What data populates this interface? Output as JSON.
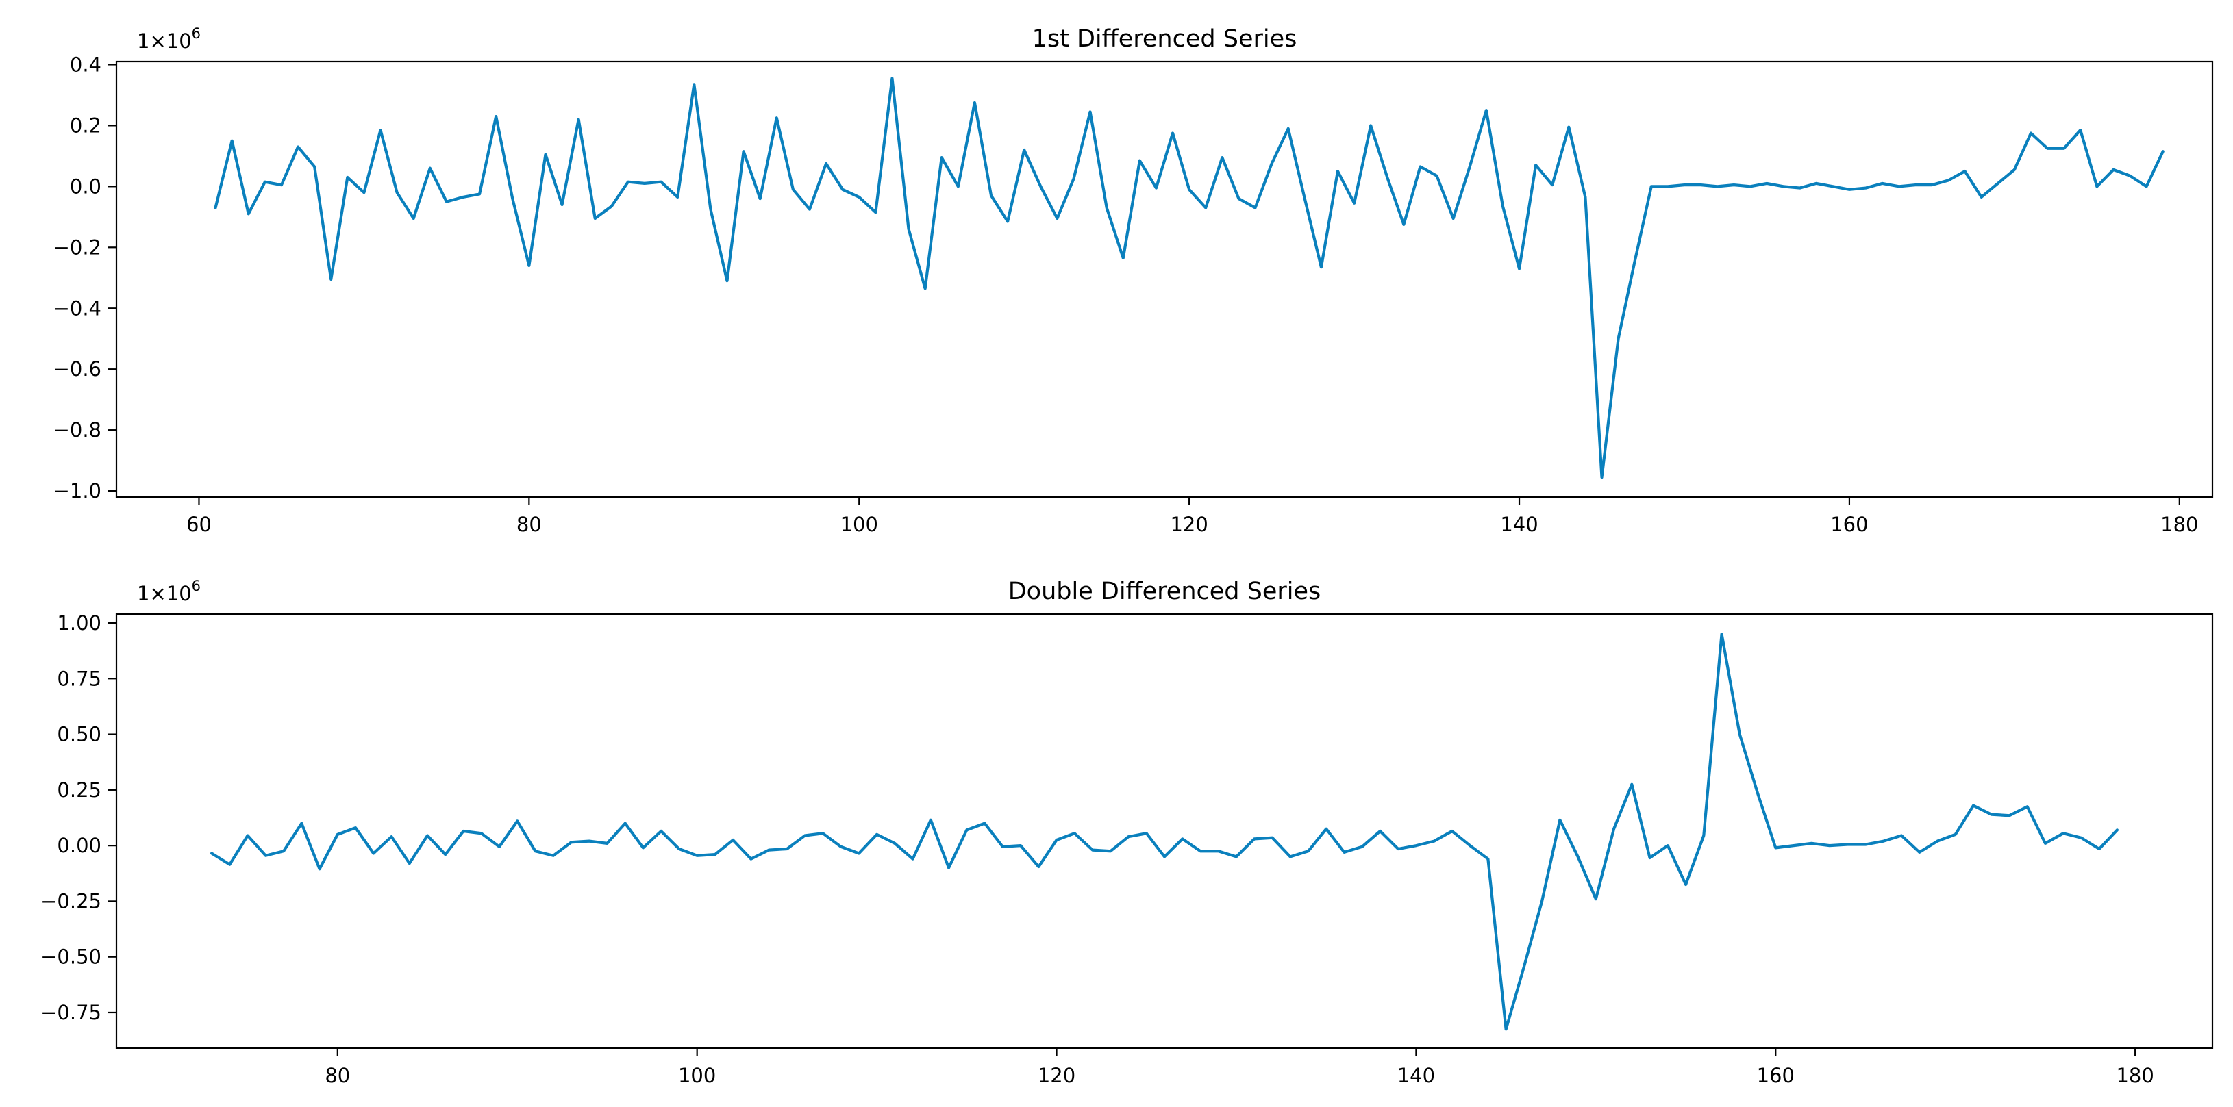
{
  "chart_data": [
    {
      "type": "line",
      "title": "1st Differenced Series",
      "xlabel": "",
      "ylabel": "",
      "y_multiplier": "1×10",
      "y_multiplier_exp": "6",
      "xlim": [
        55,
        182
      ],
      "ylim": [
        -1.02,
        0.41
      ],
      "xticks": [
        60,
        80,
        100,
        120,
        140,
        160,
        180
      ],
      "yticks": [
        0.4,
        0.2,
        0.0,
        -0.2,
        -0.4,
        -0.6,
        -0.8,
        -1.0
      ],
      "ytick_labels": [
        "0.4",
        "0.2",
        "0.0",
        "−0.2",
        "−0.4",
        "−0.6",
        "−0.8",
        "−1.0"
      ],
      "color": "#0a80bd",
      "grid": false,
      "series": [
        {
          "x_start": 61,
          "values": [
            -0.07,
            0.15,
            -0.09,
            0.015,
            0.005,
            0.13,
            0.065,
            -0.305,
            0.03,
            -0.02,
            0.185,
            -0.02,
            -0.105,
            0.06,
            -0.05,
            -0.035,
            -0.025,
            0.23,
            -0.04,
            -0.26,
            0.105,
            -0.06,
            0.22,
            -0.105,
            -0.065,
            0.015,
            0.01,
            0.015,
            -0.035,
            0.335,
            -0.075,
            -0.31,
            0.115,
            -0.04,
            0.225,
            -0.01,
            -0.075,
            0.075,
            -0.01,
            -0.035,
            -0.085,
            0.355,
            -0.14,
            -0.335,
            0.095,
            0.0,
            0.275,
            -0.03,
            -0.115,
            0.12,
            0.0,
            -0.105,
            0.025,
            0.245,
            -0.07,
            -0.235,
            0.085,
            -0.005,
            0.175,
            -0.01,
            -0.07,
            0.095,
            -0.04,
            -0.07,
            0.075,
            0.19,
            -0.04,
            -0.265,
            0.05,
            -0.055,
            0.2,
            0.03,
            -0.125,
            0.065,
            0.035,
            -0.105,
            0.065,
            0.25,
            -0.065,
            -0.27,
            0.07,
            0.005,
            0.195,
            -0.035,
            -0.955,
            -0.5,
            -0.245,
            0.0,
            0.0,
            0.005,
            0.005,
            0.0,
            0.005,
            0.0,
            0.01,
            0.0,
            -0.005,
            0.01,
            0.0,
            -0.01,
            -0.005,
            0.01,
            0.0,
            0.005,
            0.005,
            0.02,
            0.05,
            -0.035,
            0.01,
            0.055,
            0.175,
            0.125,
            0.125,
            0.185,
            0.0,
            0.055,
            0.035,
            0.0,
            0.115
          ]
        }
      ]
    },
    {
      "type": "line",
      "title": "Double Differenced Series",
      "xlabel": "",
      "ylabel": "",
      "y_multiplier": "1×10",
      "y_multiplier_exp": "6",
      "xlim": [
        67.7,
        184.3
      ],
      "ylim": [
        -0.91,
        1.04
      ],
      "xticks": [
        80,
        100,
        120,
        140,
        160,
        180
      ],
      "yticks": [
        1.0,
        0.75,
        0.5,
        0.25,
        0.0,
        -0.25,
        -0.5,
        -0.75
      ],
      "ytick_labels": [
        "1.00",
        "0.75",
        "0.50",
        "0.25",
        "0.00",
        "−0.25",
        "−0.50",
        "−0.75"
      ],
      "color": "#0a80bd",
      "grid": false,
      "series": [
        {
          "x_start": 73,
          "values": [
            -0.035,
            -0.085,
            0.045,
            -0.045,
            -0.025,
            0.1,
            -0.105,
            0.05,
            0.08,
            -0.035,
            0.04,
            -0.08,
            0.045,
            -0.04,
            0.065,
            0.055,
            -0.005,
            0.11,
            -0.025,
            -0.045,
            0.015,
            0.02,
            0.01,
            0.1,
            -0.01,
            0.065,
            -0.015,
            -0.045,
            -0.04,
            0.025,
            -0.06,
            -0.02,
            -0.015,
            0.045,
            0.055,
            -0.005,
            -0.035,
            0.05,
            0.01,
            -0.06,
            0.115,
            -0.1,
            0.07,
            0.1,
            -0.005,
            0.0,
            -0.095,
            0.025,
            0.055,
            -0.02,
            -0.025,
            0.04,
            0.055,
            -0.05,
            0.03,
            -0.025,
            -0.025,
            -0.05,
            0.03,
            0.035,
            -0.05,
            -0.025,
            0.075,
            -0.03,
            -0.005,
            0.065,
            -0.015,
            0.0,
            0.02,
            0.065,
            0.0,
            -0.06,
            -0.825,
            -0.545,
            -0.25,
            0.115,
            -0.05,
            -0.24,
            0.075,
            0.275,
            -0.055,
            0.0,
            -0.175,
            0.045,
            0.95,
            0.5,
            0.235,
            -0.01,
            0.0,
            0.01,
            0.0,
            0.005,
            0.005,
            0.02,
            0.045,
            -0.03,
            0.02,
            0.05,
            0.18,
            0.14,
            0.135,
            0.175,
            0.01,
            0.055,
            0.035,
            -0.015,
            0.07
          ]
        }
      ]
    }
  ]
}
